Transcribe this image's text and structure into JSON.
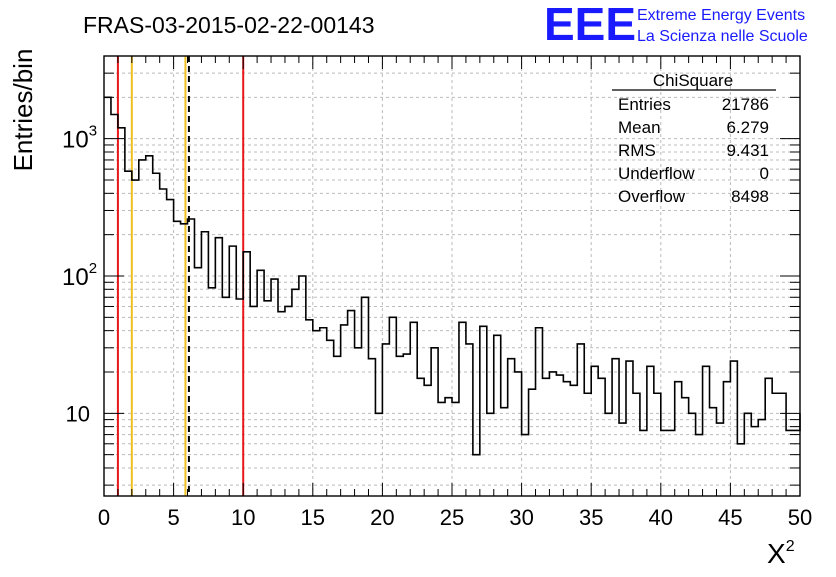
{
  "header": {
    "title": "FRAS-03-2015-02-22-00143",
    "logo_text": "EEE",
    "logo_line1": "Extreme Energy Events",
    "logo_line2": "La Scienza nelle Scuole",
    "logo_color": "#1a1aff"
  },
  "stats": {
    "title": "ChiSquare",
    "rows": [
      {
        "label": "Entries",
        "value": "21786"
      },
      {
        "label": "Mean",
        "value": "6.279"
      },
      {
        "label": "RMS",
        "value": "9.431"
      },
      {
        "label": "Underflow",
        "value": "0"
      },
      {
        "label": "Overflow",
        "value": "8498"
      }
    ]
  },
  "chart_data": {
    "type": "histogram",
    "xlabel": "X",
    "xlabel_sup": "2",
    "ylabel": "Entries/bin",
    "xlim": [
      0,
      50
    ],
    "ylim": [
      2.5,
      4000
    ],
    "yscale": "log",
    "grid": true,
    "bin_width": 0.5,
    "x_ticks": [
      0,
      5,
      10,
      15,
      20,
      25,
      30,
      35,
      40,
      45,
      50
    ],
    "x_tick_labels": [
      "0",
      "5",
      "10",
      "15",
      "20",
      "25",
      "30",
      "35",
      "40",
      "45",
      "50"
    ],
    "y_ticks": [
      {
        "value": 10,
        "label": "10",
        "sup": ""
      },
      {
        "value": 100,
        "label": "10",
        "sup": "2"
      },
      {
        "value": 1000,
        "label": "10",
        "sup": "3"
      }
    ],
    "values": [
      2000,
      1500,
      1200,
      580,
      500,
      700,
      750,
      560,
      430,
      360,
      250,
      240,
      260,
      115,
      210,
      82,
      190,
      70,
      165,
      68,
      150,
      60,
      110,
      66,
      95,
      55,
      60,
      80,
      100,
      48,
      40,
      42,
      34,
      26,
      44,
      56,
      30,
      70,
      25,
      10,
      32,
      50,
      26,
      27,
      46,
      18,
      16,
      30,
      12,
      13,
      12,
      46,
      32,
      5,
      43,
      10,
      37,
      11,
      25,
      20,
      7,
      15,
      42,
      18,
      20,
      19,
      17,
      16,
      32,
      14,
      22,
      18,
      10,
      25,
      8.5,
      24,
      14,
      7.5,
      22,
      14,
      7.5,
      7.5,
      17,
      13,
      10,
      7,
      22,
      11,
      8.5,
      17,
      24,
      6,
      10,
      8,
      9,
      18,
      14,
      14,
      7.5,
      7.5,
      10
    ],
    "vlines": [
      {
        "x": 1,
        "color": "#e8181a",
        "style": "solid"
      },
      {
        "x": 2,
        "color": "#f0c020",
        "style": "solid"
      },
      {
        "x": 5.85,
        "color": "#f0c020",
        "style": "solid"
      },
      {
        "x": 6.1,
        "color": "#000000",
        "style": "dashed"
      },
      {
        "x": 10,
        "color": "#e8181a",
        "style": "solid"
      }
    ]
  }
}
